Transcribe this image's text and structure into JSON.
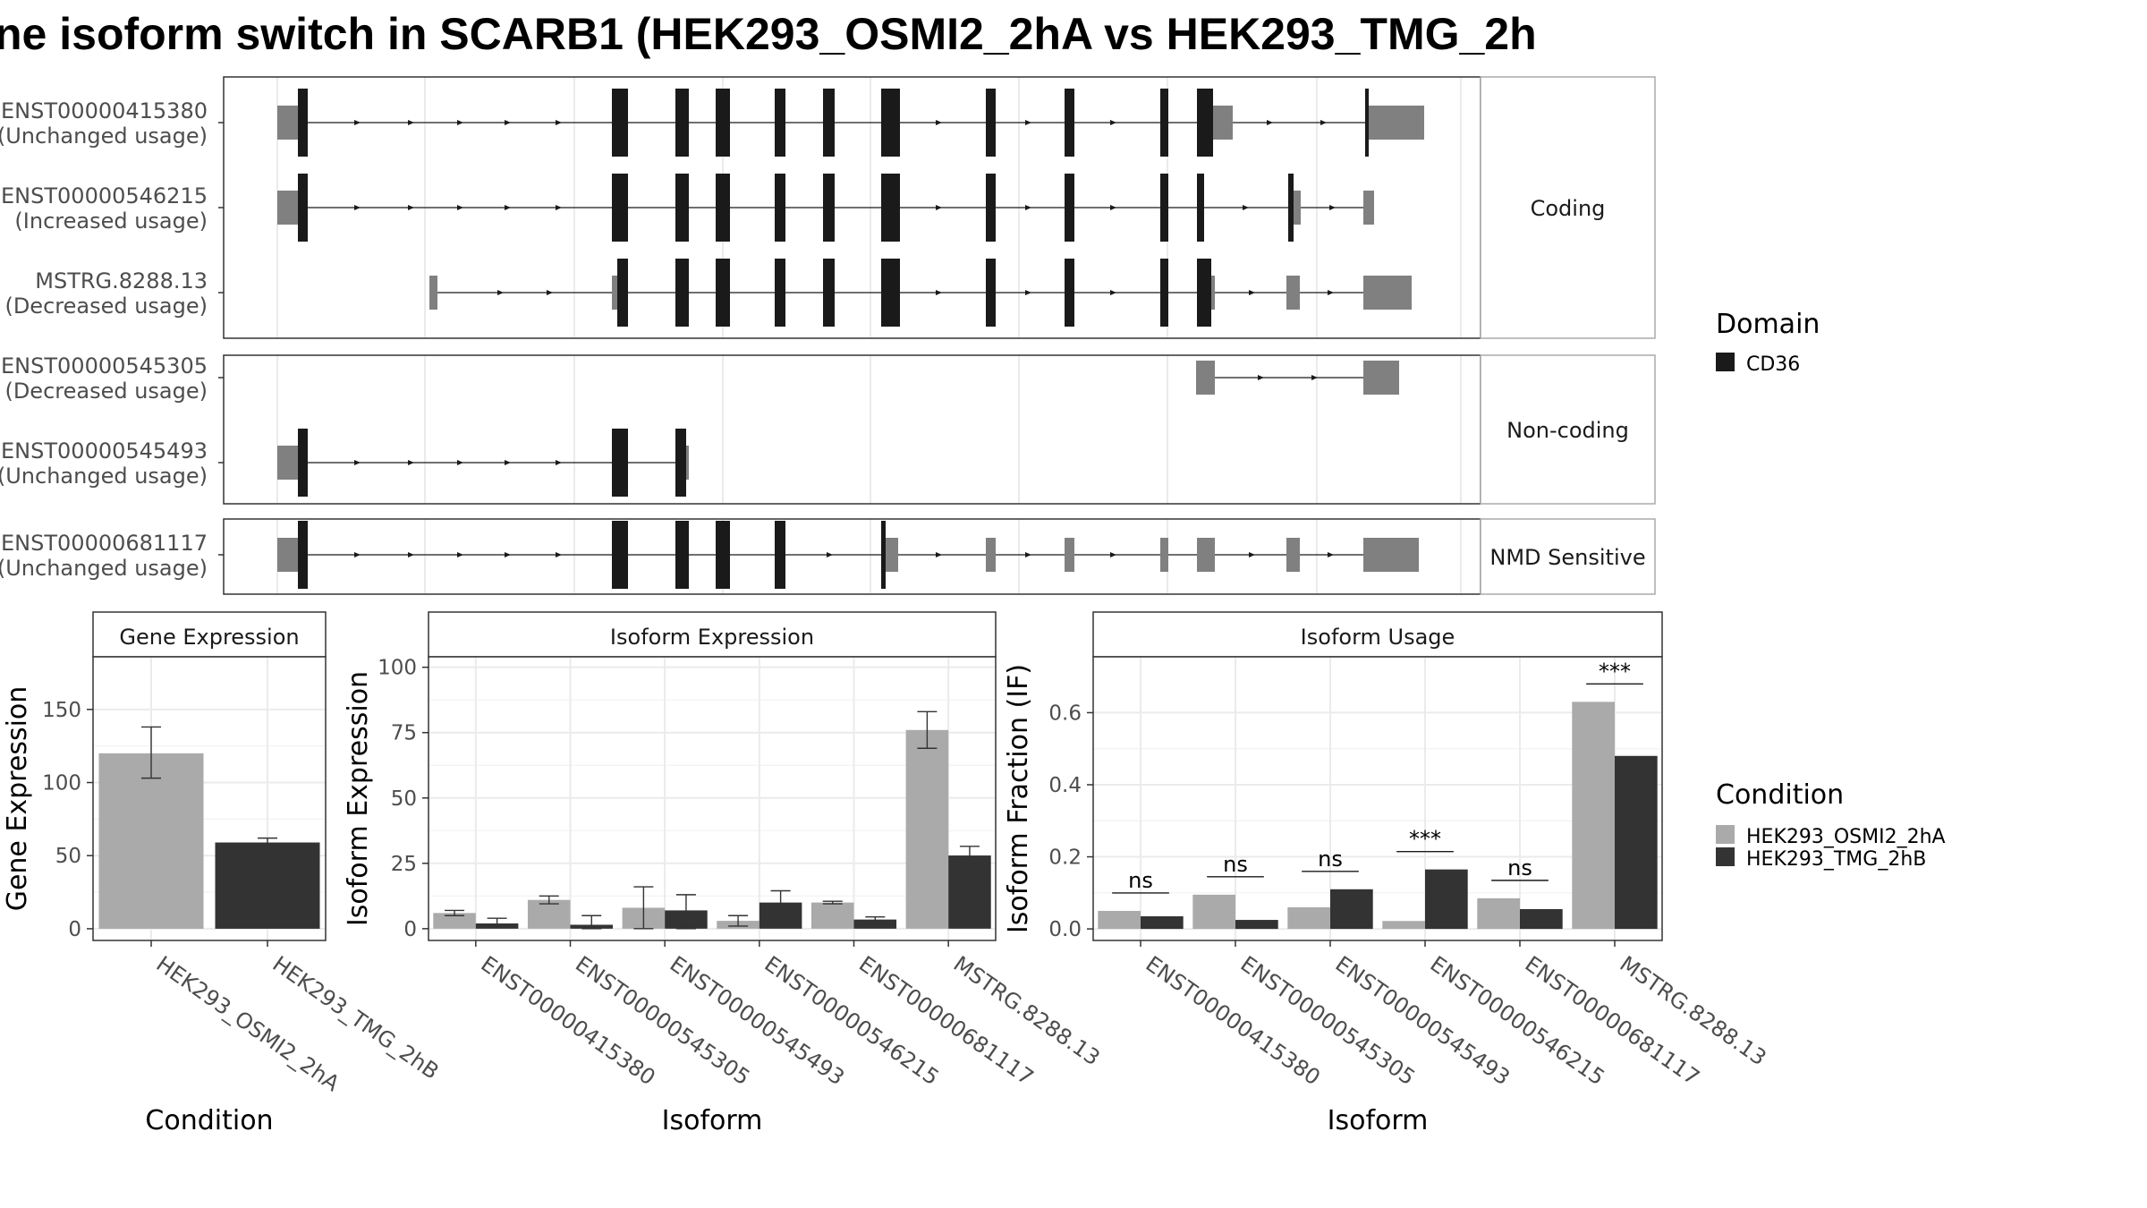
{
  "title": "ne isoform switch in SCARB1 (HEK293_OSMI2_2hA vs HEK293_TMG_2h",
  "colors": {
    "condition_a": "#AAAAAA",
    "condition_b": "#333333",
    "utr": "#808080",
    "domain": "#1a1a1a"
  },
  "transcripts": {
    "facets": [
      {
        "label": "Coding",
        "ids": [
          "ENST00000415380",
          "ENST00000546215",
          "MSTRG.8288.13"
        ]
      },
      {
        "label": "Non-coding",
        "ids": [
          "ENST00000545305",
          "ENST00000545493"
        ]
      },
      {
        "label": "NMD Sensitive",
        "ids": [
          "ENST00000681117"
        ]
      }
    ],
    "rows": [
      {
        "id": "ENST00000415380",
        "usage": "(Unchanged usage)"
      },
      {
        "id": "ENST00000546215",
        "usage": "(Increased usage)"
      },
      {
        "id": "MSTRG.8288.13",
        "usage": "(Decreased usage)"
      },
      {
        "id": "ENST00000545305",
        "usage": "(Decreased usage)"
      },
      {
        "id": "ENST00000545493",
        "usage": "(Unchanged usage)"
      },
      {
        "id": "ENST00000681117",
        "usage": "(Unchanged usage)"
      }
    ]
  },
  "legend": {
    "domain_title": "Domain",
    "domain_items": [
      "CD36"
    ],
    "condition_title": "Condition",
    "condition_items": [
      "HEK293_OSMI2_2hA",
      "HEK293_TMG_2hB"
    ]
  },
  "chart_data": [
    {
      "type": "bar",
      "facet": "Gene Expression",
      "xlabel": "Condition",
      "ylabel": "Gene Expression",
      "ylim": [
        -8,
        186
      ],
      "yticks": [
        0,
        50,
        100,
        150
      ],
      "categories": [
        "HEK293_OSMI2_2hA",
        "HEK293_TMG_2hB"
      ],
      "values": [
        120,
        59
      ],
      "errors": [
        [
          103,
          138
        ],
        [
          57,
          62
        ]
      ]
    },
    {
      "type": "bar",
      "facet": "Isoform Expression",
      "xlabel": "Isoform",
      "ylabel": "Isoform Expression",
      "ylim": [
        -4.5,
        104
      ],
      "yticks": [
        0,
        25,
        50,
        75,
        100
      ],
      "categories": [
        "ENST00000415380",
        "ENST00000545305",
        "ENST00000545493",
        "ENST00000546215",
        "ENST00000681117",
        "MSTRG.8288.13"
      ],
      "series": [
        {
          "name": "HEK293_OSMI2_2hA",
          "values": [
            6,
            11,
            8,
            3,
            10,
            76
          ],
          "errors": [
            [
              5,
              7
            ],
            [
              9.5,
              12.5
            ],
            [
              0,
              16
            ],
            [
              1,
              5
            ],
            [
              9.5,
              10.5
            ],
            [
              69,
              83
            ]
          ]
        },
        {
          "name": "HEK293_TMG_2hB",
          "values": [
            2,
            1.5,
            7,
            10,
            3.5,
            28
          ],
          "errors": [
            [
              0.5,
              4
            ],
            [
              0,
              5
            ],
            [
              0,
              13
            ],
            [
              6,
              14.5
            ],
            [
              2.5,
              4.5
            ],
            [
              25,
              31.5
            ]
          ]
        }
      ]
    },
    {
      "type": "bar",
      "facet": "Isoform Usage",
      "xlabel": "Isoform",
      "ylabel": "Isoform Fraction (IF)",
      "ylim": [
        -0.032,
        0.755
      ],
      "yticks": [
        0.0,
        0.2,
        0.4,
        0.6
      ],
      "ytick_labels": [
        "0.0",
        "0.2",
        "0.4",
        "0.6"
      ],
      "categories": [
        "ENST00000415380",
        "ENST00000545305",
        "ENST00000545493",
        "ENST00000546215",
        "ENST00000681117",
        "MSTRG.8288.13"
      ],
      "series": [
        {
          "name": "HEK293_OSMI2_2hA",
          "values": [
            0.05,
            0.095,
            0.06,
            0.022,
            0.085,
            0.63
          ]
        },
        {
          "name": "HEK293_TMG_2hB",
          "values": [
            0.035,
            0.025,
            0.11,
            0.165,
            0.055,
            0.48
          ]
        }
      ],
      "significance": [
        "ns",
        "ns",
        "ns",
        "***",
        "ns",
        "***"
      ]
    }
  ]
}
